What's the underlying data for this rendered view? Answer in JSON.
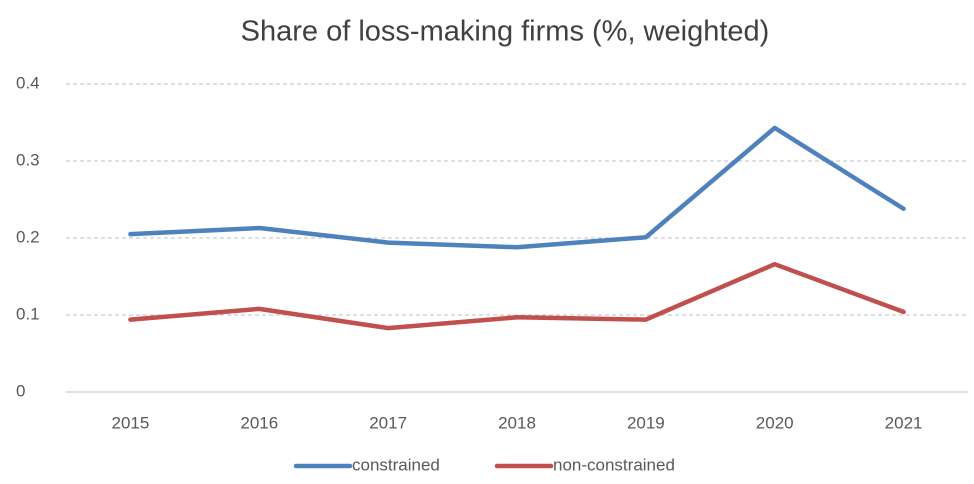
{
  "chart_data": {
    "type": "line",
    "title": "Share of loss-making firms (%, weighted)",
    "categories": [
      "2015",
      "2016",
      "2017",
      "2018",
      "2019",
      "2020",
      "2021"
    ],
    "series": [
      {
        "name": "constrained",
        "color": "#4f81bd",
        "values": [
          0.205,
          0.213,
          0.194,
          0.188,
          0.201,
          0.343,
          0.238
        ]
      },
      {
        "name": "non-constrained",
        "color": "#c0504d",
        "values": [
          0.094,
          0.108,
          0.083,
          0.097,
          0.094,
          0.166,
          0.104
        ]
      }
    ],
    "ylim": [
      0,
      0.4
    ],
    "yticks": [
      0,
      0.1,
      0.2,
      0.3,
      0.4
    ],
    "grid": true,
    "legend": "bottom"
  }
}
